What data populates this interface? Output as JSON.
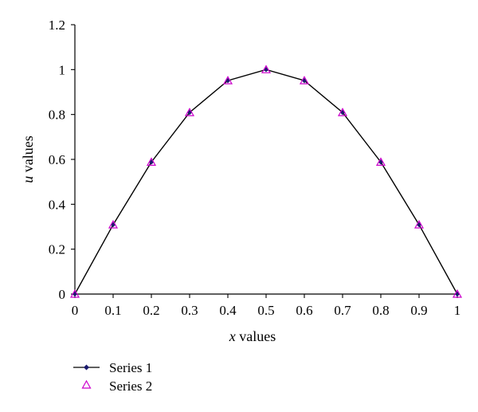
{
  "chart_data": {
    "type": "line",
    "title": "",
    "xlabel": {
      "var": "x",
      "rest": " values"
    },
    "ylabel": {
      "var": "u",
      "rest": " values"
    },
    "xlim": [
      0,
      1
    ],
    "ylim": [
      0,
      1.2
    ],
    "x_ticks": [
      "0",
      "0.1",
      "0.2",
      "0.3",
      "0.4",
      "0.5",
      "0.6",
      "0.7",
      "0.8",
      "0.9",
      "1"
    ],
    "y_ticks": [
      "0",
      "0.2",
      "0.4",
      "0.6",
      "0.8",
      "1",
      "1.2"
    ],
    "grid": false,
    "legend_position": "bottom-left",
    "series": [
      {
        "name": "Series 1",
        "marker": "diamond",
        "line": true,
        "color": "#000000",
        "marker_color": "#1a1a6e",
        "x": [
          0,
          0.1,
          0.2,
          0.3,
          0.4,
          0.5,
          0.6,
          0.7,
          0.8,
          0.9,
          1.0
        ],
        "values": [
          0,
          0.309,
          0.588,
          0.809,
          0.951,
          1.0,
          0.951,
          0.809,
          0.588,
          0.309,
          0
        ]
      },
      {
        "name": "Series 2",
        "marker": "triangle",
        "line": false,
        "color": "#cc00cc",
        "x": [
          0,
          0.1,
          0.2,
          0.3,
          0.4,
          0.5,
          0.6,
          0.7,
          0.8,
          0.9,
          1.0
        ],
        "values": [
          0,
          0.309,
          0.588,
          0.809,
          0.951,
          1.0,
          0.951,
          0.809,
          0.588,
          0.309,
          0
        ]
      }
    ]
  }
}
